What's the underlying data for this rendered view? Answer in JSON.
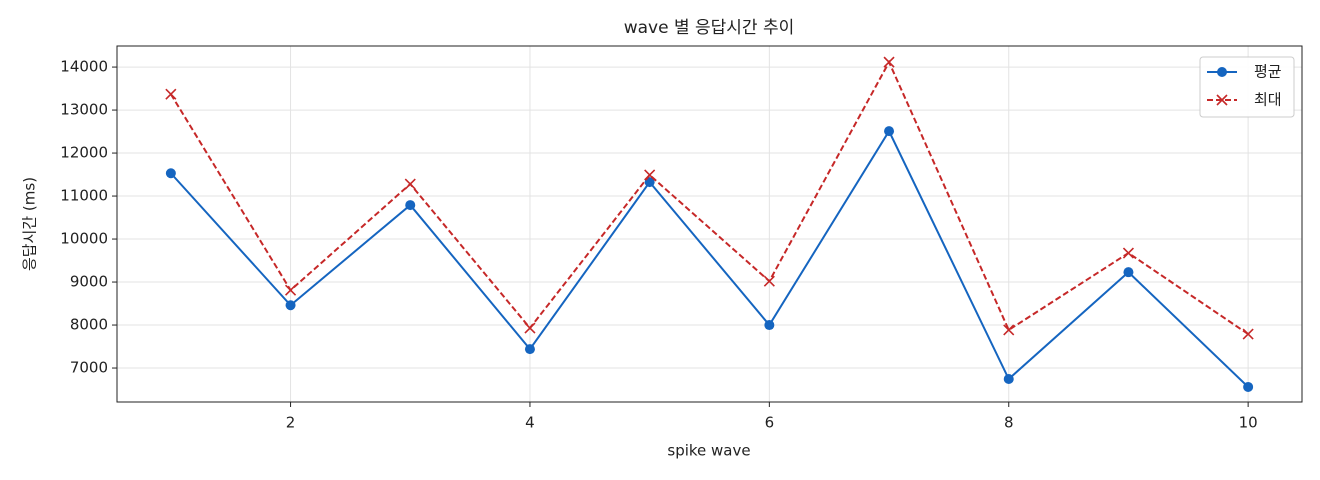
{
  "chart_data": {
    "type": "line",
    "title": "wave 별 응답시간 추이",
    "x_label": "spike wave",
    "y_label": "응답시간 (ms)",
    "x": [
      1,
      2,
      3,
      4,
      5,
      6,
      7,
      8,
      9,
      10
    ],
    "series": [
      {
        "name": "평균",
        "color": "#1565c0",
        "linestyle": "solid",
        "marker": "o",
        "values": [
          11530,
          8460,
          10790,
          7440,
          11325,
          8000,
          12510,
          6745,
          9230,
          6560
        ]
      },
      {
        "name": "최대",
        "color": "#c62828",
        "linestyle": "dashed",
        "marker": "x",
        "values": [
          13370,
          8810,
          11280,
          7930,
          11490,
          9020,
          14115,
          7885,
          9675,
          7790
        ]
      }
    ],
    "xlim": [
      0.55,
      10.45
    ],
    "xticks": [
      2,
      4,
      6,
      8,
      10
    ],
    "ylim": [
      6210,
      14490
    ],
    "yticks": [
      7000,
      8000,
      9000,
      10000,
      11000,
      12000,
      13000,
      14000
    ],
    "grid": true,
    "legend": "upper right"
  }
}
